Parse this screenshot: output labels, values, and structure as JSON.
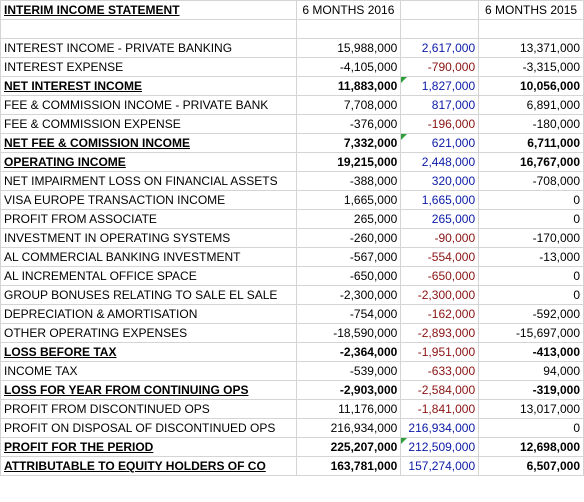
{
  "header": {
    "title": "INTERIM INCOME STATEMENT",
    "col2": "6 MONTHS 2016",
    "col3": "",
    "col4": "6 MONTHS 2015"
  },
  "rows": [
    {
      "label": "INTEREST INCOME - PRIVATE BANKING",
      "v2016": "15,988,000",
      "diff": "2,617,000",
      "v2015": "13,371,000",
      "bold": false,
      "neg": false
    },
    {
      "label": "INTEREST EXPENSE",
      "v2016": "-4,105,000",
      "diff": "-790,000",
      "v2015": "-3,315,000",
      "bold": false,
      "neg": true
    },
    {
      "label": "NET INTEREST INCOME",
      "v2016": "11,883,000",
      "diff": "1,827,000",
      "v2015": "10,056,000",
      "bold": true,
      "neg": false
    },
    {
      "label": "FEE & COMMISSION INCOME - PRIVATE BANK",
      "v2016": "7,708,000",
      "diff": "817,000",
      "v2015": "6,891,000",
      "bold": false,
      "neg": false
    },
    {
      "label": "FEE & COMMISSION EXPENSE",
      "v2016": "-376,000",
      "diff": "-196,000",
      "v2015": "-180,000",
      "bold": false,
      "neg": true
    },
    {
      "label": "NET FEE & COMISSION INCOME",
      "v2016": "7,332,000",
      "diff": "621,000",
      "v2015": "6,711,000",
      "bold": true,
      "neg": false
    },
    {
      "label": "OPERATING INCOME",
      "v2016": "19,215,000",
      "diff": "2,448,000",
      "v2015": "16,767,000",
      "bold": true,
      "neg": false
    },
    {
      "label": "NET IMPAIRMENT LOSS ON FINANCIAL ASSETS",
      "v2016": "-388,000",
      "diff": "320,000",
      "v2015": "-708,000",
      "bold": false,
      "neg": false
    },
    {
      "label": "VISA EUROPE TRANSACTION INCOME",
      "v2016": "1,665,000",
      "diff": "1,665,000",
      "v2015": "0",
      "bold": false,
      "neg": false
    },
    {
      "label": "PROFIT FROM ASSOCIATE",
      "v2016": "265,000",
      "diff": "265,000",
      "v2015": "0",
      "bold": false,
      "neg": false
    },
    {
      "label": "INVESTMENT IN OPERATING SYSTEMS",
      "v2016": "-260,000",
      "diff": "-90,000",
      "v2015": "-170,000",
      "bold": false,
      "neg": true
    },
    {
      "label": "AL COMMERCIAL BANKING INVESTMENT",
      "v2016": "-567,000",
      "diff": "-554,000",
      "v2015": "-13,000",
      "bold": false,
      "neg": true
    },
    {
      "label": "AL INCREMENTAL OFFICE SPACE",
      "v2016": "-650,000",
      "diff": "-650,000",
      "v2015": "0",
      "bold": false,
      "neg": true
    },
    {
      "label": "GROUP BONUSES RELATING TO SALE EL SALE",
      "v2016": "-2,300,000",
      "diff": "-2,300,000",
      "v2015": "0",
      "bold": false,
      "neg": true
    },
    {
      "label": "DEPRECIATION & AMORTISATION",
      "v2016": "-754,000",
      "diff": "-162,000",
      "v2015": "-592,000",
      "bold": false,
      "neg": true
    },
    {
      "label": "OTHER OPERATING EXPENSES",
      "v2016": "-18,590,000",
      "diff": "-2,893,000",
      "v2015": "-15,697,000",
      "bold": false,
      "neg": true
    },
    {
      "label": "LOSS BEFORE TAX",
      "v2016": "-2,364,000",
      "diff": "-1,951,000",
      "v2015": "-413,000",
      "bold": true,
      "neg": true
    },
    {
      "label": "INCOME TAX",
      "v2016": "-539,000",
      "diff": "-633,000",
      "v2015": "94,000",
      "bold": false,
      "neg": true
    },
    {
      "label": "LOSS FOR YEAR FROM CONTINUING OPS",
      "v2016": "-2,903,000",
      "diff": "-2,584,000",
      "v2015": "-319,000",
      "bold": true,
      "neg": true
    },
    {
      "label": "PROFIT FROM DISCONTINUED OPS",
      "v2016": "11,176,000",
      "diff": "-1,841,000",
      "v2015": "13,017,000",
      "bold": false,
      "neg": true
    },
    {
      "label": "PROFIT ON DISPOSAL OF DISCONTINUED OPS",
      "v2016": "216,934,000",
      "diff": "216,934,000",
      "v2015": "0",
      "bold": false,
      "neg": false
    },
    {
      "label": "PROFIT FOR THE PERIOD",
      "v2016": "225,207,000",
      "diff": "212,509,000",
      "v2015": "12,698,000",
      "bold": true,
      "neg": false
    },
    {
      "label": "ATTRIBUTABLE TO EQUITY HOLDERS OF CO",
      "v2016": "163,781,000",
      "diff": "157,274,000",
      "v2015": "6,507,000",
      "bold": true,
      "neg": false
    }
  ],
  "colors": {
    "diff_positive": "#0b1aa7",
    "diff_negative": "#8a1212",
    "gridline": "#d4d4d4",
    "comment_marker": "#2e9e3a"
  }
}
